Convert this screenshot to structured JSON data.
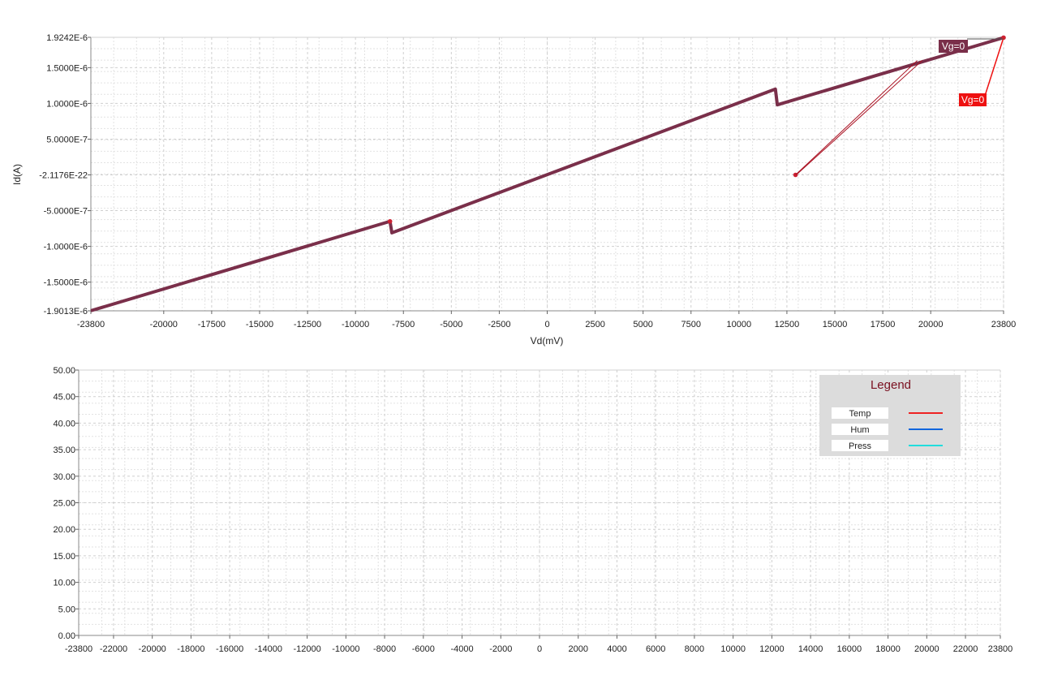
{
  "chart_data": [
    {
      "type": "line",
      "xlabel": "Vd(mV)",
      "ylabel": "Id(A)",
      "xlim": [
        -23800,
        23800
      ],
      "ylim": [
        -1.9013e-06,
        1.9242e-06
      ],
      "x_ticks": [
        -23800,
        -20000,
        -17500,
        -15000,
        -12500,
        -10000,
        -7500,
        -5000,
        -2500,
        0,
        2500,
        5000,
        7500,
        10000,
        12500,
        15000,
        17500,
        20000,
        23800
      ],
      "x_tick_labels": [
        "-23800",
        "-20000",
        "-17500",
        "-15000",
        "-12500",
        "-10000",
        "-7500",
        "-5000",
        "-2500",
        "0",
        "2500",
        "5000",
        "7500",
        "10000",
        "12500",
        "15000",
        "17500",
        "20000",
        "23800"
      ],
      "y_ticks": [
        1.9242e-06,
        1.5e-06,
        1e-06,
        5e-07,
        -2.1176e-22,
        -5e-07,
        -1e-06,
        -1.5e-06,
        -1.9013e-06
      ],
      "y_tick_labels": [
        "1.9242E-6",
        "1.5000E-6",
        "1.0000E-6",
        "5.0000E-7",
        "-2.1176E-22",
        "-5.0000E-7",
        "-1.0000E-6",
        "-1.5000E-6",
        "-1.9013E-6"
      ],
      "grid": true,
      "series": [
        {
          "color": "#7a2f4a",
          "x": [
            -23800,
            -8200,
            -8200,
            -8100,
            11900,
            11900,
            12000,
            23800
          ],
          "y": [
            -1.9e-06,
            -6.5e-07,
            -6.5e-07,
            -8.1e-07,
            1.2e-06,
            1.2e-06,
            9.8e-07,
            1.92e-06
          ]
        }
      ],
      "markers": [
        {
          "x": -8200,
          "y": -6.5e-07,
          "color": "#cc2233"
        },
        {
          "x": 12950,
          "y": 0,
          "color": "#cc2233"
        },
        {
          "x": 23800,
          "y": 1.92e-06,
          "color": "#cc2233"
        }
      ],
      "annotations": [
        {
          "text": "Vg=0",
          "color": "#7a2f4a",
          "text_color": "#ffffff"
        },
        {
          "text": "Vg=0",
          "color": "#ee1111",
          "text_color": "#ffffff"
        }
      ]
    },
    {
      "type": "line",
      "xlim": [
        -23800,
        23800
      ],
      "ylim": [
        0,
        50
      ],
      "x_ticks": [
        -23800,
        -22000,
        -20000,
        -18000,
        -16000,
        -14000,
        -12000,
        -10000,
        -8000,
        -6000,
        -4000,
        -2000,
        0,
        2000,
        4000,
        6000,
        8000,
        10000,
        12000,
        14000,
        16000,
        18000,
        20000,
        22000,
        23800
      ],
      "x_tick_labels": [
        "-23800",
        "-22000",
        "-20000",
        "-18000",
        "-16000",
        "-14000",
        "-12000",
        "-10000",
        "-8000",
        "-6000",
        "-4000",
        "-2000",
        "0",
        "2000",
        "4000",
        "6000",
        "8000",
        "10000",
        "12000",
        "14000",
        "16000",
        "18000",
        "20000",
        "22000",
        "23800"
      ],
      "y_ticks": [
        0,
        5,
        10,
        15,
        20,
        25,
        30,
        35,
        40,
        45,
        50
      ],
      "y_tick_labels": [
        "0.00",
        "5.00",
        "10.00",
        "15.00",
        "20.00",
        "25.00",
        "30.00",
        "35.00",
        "40.00",
        "45.00",
        "50.00"
      ],
      "grid": true,
      "legend": {
        "title": "Legend",
        "placement": "top-right",
        "entries": [
          {
            "name": "Temp",
            "color": "#ee2222"
          },
          {
            "name": "Hum",
            "color": "#1166dd"
          },
          {
            "name": "Press",
            "color": "#22dddd"
          }
        ]
      },
      "series": []
    }
  ]
}
